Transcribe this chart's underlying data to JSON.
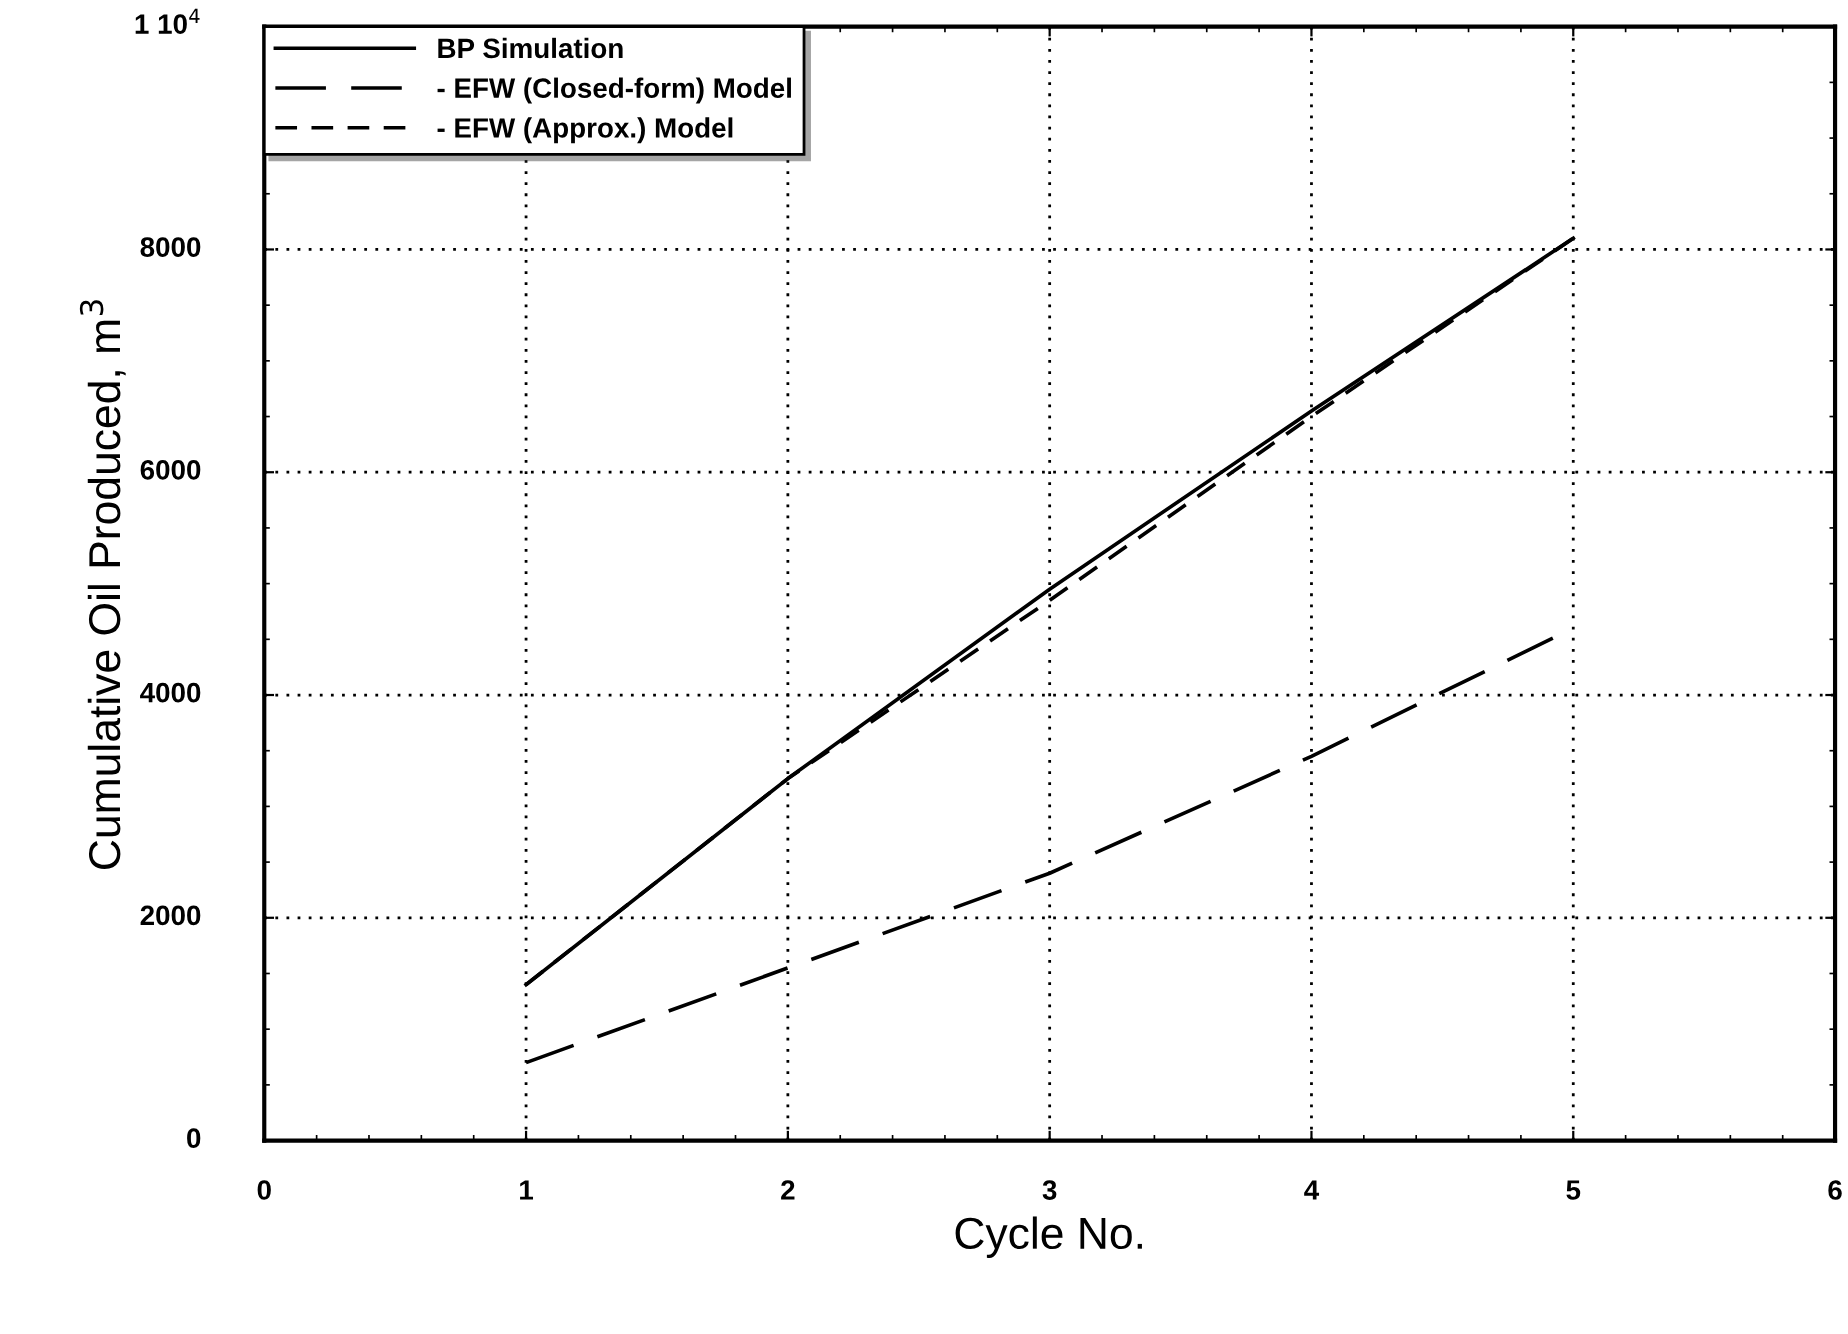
{
  "chart_data": {
    "type": "line",
    "xlabel": "Cycle No.",
    "ylabel": "Cumulative Oil Produced, m$^{3}$",
    "x": [
      1,
      2,
      3,
      4,
      5
    ],
    "series": [
      {
        "name": "BP Simulation",
        "color": "#000000",
        "line_style": "solid",
        "values": [
          1400,
          3250,
          4950,
          6550,
          8100
        ]
      },
      {
        "name": "- EFW (Closed-form) Model",
        "color": "#000000",
        "line_style": "longdash",
        "values": [
          700,
          1550,
          2400,
          3450,
          4600
        ]
      },
      {
        "name": "- EFW (Approx.) Model",
        "color": "#000000",
        "line_style": "dashed",
        "values": [
          1400,
          3250,
          4850,
          6500,
          8100
        ]
      }
    ],
    "xlim": [
      0,
      6
    ],
    "xticks": [
      0,
      1,
      2,
      3,
      4,
      5,
      6
    ],
    "ylim": [
      0,
      10000
    ],
    "yticks": [
      0,
      2000,
      4000,
      6000,
      8000,
      {
        "value": 10000,
        "label": "1 10$^{4}$"
      }
    ],
    "grid": true,
    "legend": "top left",
    "marker": "none"
  }
}
